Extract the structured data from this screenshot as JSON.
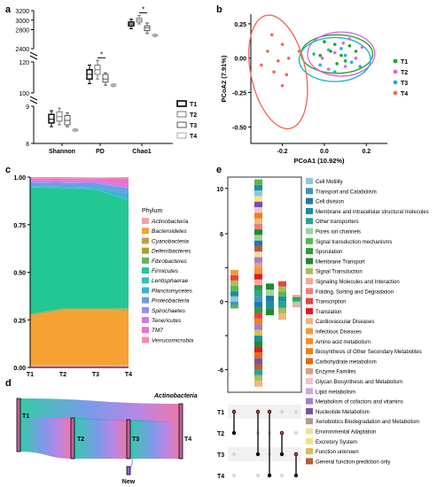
{
  "panels": {
    "a": {
      "label": "a"
    },
    "b": {
      "label": "b"
    },
    "c": {
      "label": "c"
    },
    "d": {
      "label": "d"
    },
    "e": {
      "label": "e"
    }
  },
  "groups": [
    "T1",
    "T2",
    "T3",
    "T4"
  ],
  "colors": {
    "T1": "#2aa02b",
    "T2": "#e066e0",
    "T3": "#18b8c8",
    "T4": "#f26a5e"
  },
  "chart_data": [
    {
      "type": "box",
      "panel": "a",
      "categories": [
        "Shannon",
        "PD",
        "Chao1"
      ],
      "legend": [
        "T1",
        "T2",
        "T3",
        "T4"
      ],
      "y_segments": [
        {
          "range": [
            8,
            9
          ],
          "ticks": [
            8,
            9
          ]
        },
        {
          "range": [
            100,
            120
          ],
          "ticks": [
            100,
            120
          ]
        },
        {
          "range": [
            2400,
            3200
          ],
          "ticks": [
            2400,
            2800,
            3000,
            3200
          ]
        }
      ],
      "boxes": {
        "Shannon": [
          {
            "group": "T1",
            "min": 8.45,
            "q1": 8.55,
            "median": 8.65,
            "q3": 8.78,
            "max": 8.88
          },
          {
            "group": "T2",
            "min": 8.5,
            "q1": 8.6,
            "median": 8.72,
            "q3": 8.85,
            "max": 8.95
          },
          {
            "group": "T3",
            "min": 8.45,
            "q1": 8.5,
            "median": 8.62,
            "q3": 8.75,
            "max": 8.82
          },
          {
            "group": "T4",
            "min": 8.32,
            "q1": 8.34,
            "median": 8.36,
            "q3": 8.38,
            "max": 8.4
          }
        ],
        "PD": [
          {
            "group": "T1",
            "min": 106,
            "q1": 109,
            "median": 112,
            "q3": 115,
            "max": 118
          },
          {
            "group": "T2",
            "min": 109,
            "q1": 112,
            "median": 115,
            "q3": 118,
            "max": 121
          },
          {
            "group": "T3",
            "min": 105,
            "q1": 107,
            "median": 109,
            "q3": 112,
            "max": 113
          },
          {
            "group": "T4",
            "min": 104,
            "q1": 104.5,
            "median": 105,
            "q3": 105.5,
            "max": 106
          }
        ],
        "Chao1": [
          {
            "group": "T1",
            "min": 2820,
            "q1": 2880,
            "median": 2920,
            "q3": 2960,
            "max": 3020
          },
          {
            "group": "T2",
            "min": 2920,
            "q1": 2960,
            "median": 3000,
            "q3": 3040,
            "max": 3100
          },
          {
            "group": "T3",
            "min": 2720,
            "q1": 2780,
            "median": 2840,
            "q3": 2880,
            "max": 2940
          },
          {
            "group": "T4",
            "min": 2650,
            "q1": 2665,
            "median": 2680,
            "q3": 2695,
            "max": 2710
          }
        ]
      },
      "significance": [
        {
          "category": "PD",
          "between": [
            "T2",
            "T3"
          ],
          "label": "*"
        },
        {
          "category": "Chao1",
          "between": [
            "T2",
            "T3"
          ],
          "label": "*"
        }
      ]
    },
    {
      "type": "scatter",
      "panel": "b",
      "xlabel": "PCoA1 (10.92%)",
      "ylabel": "PCoA2 (7.91%)",
      "xlim": [
        -0.35,
        0.3
      ],
      "ylim": [
        -0.62,
        0.32
      ],
      "xticks": [
        -0.2,
        0.0,
        0.2
      ],
      "yticks": [
        -0.5,
        -0.25,
        0.0,
        0.25
      ],
      "xticklabels": [
        "-0.2",
        "0.0",
        "0.2"
      ],
      "yticklabels": [
        "-0.50",
        "-0.25",
        "0.00",
        "0.25"
      ],
      "legend": [
        "T1",
        "T2",
        "T3",
        "T4"
      ],
      "series": [
        {
          "name": "T1",
          "points": [
            [
              0.0,
              0.12
            ],
            [
              0.05,
              0.1
            ],
            [
              0.08,
              0.02
            ],
            [
              0.1,
              -0.02
            ],
            [
              0.03,
              0.05
            ],
            [
              -0.02,
              0.02
            ],
            [
              0.12,
              0.09
            ],
            [
              0.06,
              -0.04
            ],
            [
              0.15,
              0.05
            ]
          ]
        },
        {
          "name": "T2",
          "points": [
            [
              0.12,
              0.14
            ],
            [
              0.05,
              0.04
            ],
            [
              0.15,
              0.0
            ],
            [
              0.1,
              -0.06
            ],
            [
              -0.01,
              0.0
            ],
            [
              0.18,
              0.08
            ],
            [
              0.02,
              -0.08
            ],
            [
              0.09,
              0.11
            ]
          ]
        },
        {
          "name": "T3",
          "points": [
            [
              -0.02,
              -0.05
            ],
            [
              0.02,
              0.06
            ],
            [
              0.08,
              0.07
            ],
            [
              0.05,
              -0.1
            ],
            [
              -0.05,
              0.03
            ],
            [
              0.13,
              -0.03
            ],
            [
              0.1,
              0.02
            ],
            [
              0.17,
              -0.06
            ]
          ]
        },
        {
          "name": "T4",
          "points": [
            [
              -0.25,
              0.17
            ],
            [
              -0.27,
              0.05
            ],
            [
              -0.2,
              0.1
            ],
            [
              -0.22,
              -0.02
            ],
            [
              -0.17,
              0.0
            ],
            [
              -0.3,
              -0.05
            ],
            [
              -0.24,
              -0.1
            ],
            [
              -0.18,
              -0.12
            ],
            [
              -0.2,
              -0.2
            ],
            [
              -0.12,
              0.05
            ]
          ]
        }
      ],
      "ellipses": [
        {
          "group": "T1",
          "cx": 0.06,
          "cy": 0.03,
          "rx": 0.17,
          "ry": 0.14
        },
        {
          "group": "T2",
          "cx": 0.08,
          "cy": 0.03,
          "rx": 0.16,
          "ry": 0.16
        },
        {
          "group": "T3",
          "cx": 0.05,
          "cy": -0.01,
          "rx": 0.17,
          "ry": 0.16
        },
        {
          "group": "T4",
          "cx": -0.22,
          "cy": -0.1,
          "rx": 0.13,
          "ry": 0.42
        }
      ]
    },
    {
      "type": "area",
      "panel": "c",
      "categories": [
        "T1",
        "T2",
        "T3",
        "T4"
      ],
      "ylim": [
        0,
        1
      ],
      "yticks": [
        0.0,
        0.25,
        0.5,
        0.75,
        1.0
      ],
      "yticklabels": [
        "0.00",
        "0.25",
        "0.50",
        "0.75",
        "1.00"
      ],
      "legend_title": "Phylum",
      "series": [
        {
          "name": "Actinobacteria",
          "color": "#f4a0a8",
          "values": [
            0.012,
            0.012,
            0.012,
            0.015
          ]
        },
        {
          "name": "Bacteroidetes",
          "color": "#f5a233",
          "values": [
            0.26,
            0.29,
            0.29,
            0.285
          ]
        },
        {
          "name": "Cyanobacteria",
          "color": "#b7a545",
          "values": [
            0.003,
            0.003,
            0.003,
            0.005
          ]
        },
        {
          "name": "Deferribacteres",
          "color": "#a4a42c",
          "values": [
            0.003,
            0.003,
            0.003,
            0.003
          ]
        },
        {
          "name": "Fibrobacteres",
          "color": "#5cb85c",
          "values": [
            0.003,
            0.003,
            0.003,
            0.003
          ]
        },
        {
          "name": "Firmicutes",
          "color": "#22c792",
          "values": [
            0.665,
            0.63,
            0.623,
            0.565
          ]
        },
        {
          "name": "Lentisphaerae",
          "color": "#2ac4c0",
          "values": [
            0.003,
            0.003,
            0.003,
            0.004
          ]
        },
        {
          "name": "Planctomycetes",
          "color": "#38b4d8",
          "values": [
            0.003,
            0.005,
            0.01,
            0.03
          ]
        },
        {
          "name": "Proteobacteria",
          "color": "#6a9ee4",
          "values": [
            0.02,
            0.02,
            0.02,
            0.03
          ]
        },
        {
          "name": "Spirochaetes",
          "color": "#9a8ef0",
          "values": [
            0.005,
            0.005,
            0.005,
            0.005
          ]
        },
        {
          "name": "Tenericutes",
          "color": "#d478e8",
          "values": [
            0.005,
            0.008,
            0.01,
            0.015
          ]
        },
        {
          "name": "TM7",
          "color": "#f070c8",
          "values": [
            0.01,
            0.01,
            0.01,
            0.03
          ]
        },
        {
          "name": "Verrucomicrobia",
          "color": "#f48cb4",
          "values": [
            0.008,
            0.008,
            0.006,
            0.01
          ]
        }
      ]
    },
    {
      "type": "sankey",
      "panel": "d",
      "nodes": [
        "T1",
        "T2",
        "T3",
        "T4",
        "New",
        "Actinobacteria"
      ],
      "flows": [
        {
          "from": "T1",
          "to": "T4",
          "value": 0.35
        },
        {
          "from": "T1",
          "to": "T2",
          "value": 0.65
        },
        {
          "from": "T2",
          "to": "T3",
          "value": 0.62
        },
        {
          "from": "T3",
          "to": "T4",
          "value": 0.62
        },
        {
          "from": "New",
          "to": "T3",
          "value": 0.05
        }
      ]
    },
    {
      "type": "bar",
      "panel": "e",
      "subtype": "upset-stacked",
      "ylim": [
        -8,
        11
      ],
      "yticks": [
        -6,
        -3,
        0,
        3,
        6,
        10
      ],
      "yticklabels": [
        "-6",
        "",
        "0",
        "",
        "6",
        "10"
      ],
      "set_rows": [
        "T1",
        "T2",
        "T3",
        "T4"
      ],
      "intersections": [
        {
          "sets": [
            "T1",
            "T2"
          ],
          "up": 2.8,
          "down": -0.6
        },
        {
          "sets": [
            "T1",
            "T3"
          ],
          "up": 10.8,
          "down": -7.5
        },
        {
          "sets": [
            "T1",
            "T4"
          ],
          "up": 1.6,
          "down": -1.2
        },
        {
          "sets": [
            "T2",
            "T3"
          ],
          "up": 1.8,
          "down": -1.6
        },
        {
          "sets": [
            "T3",
            "T4"
          ],
          "up": 0.6,
          "down": -0.5
        }
      ],
      "legend": [
        {
          "name": "Cell Motility",
          "color": "#8fc6e0"
        },
        {
          "name": "Transport and Catabolism",
          "color": "#3f94c4"
        },
        {
          "name": "Cell division",
          "color": "#1f78b4"
        },
        {
          "name": "Membrane and intracellular structural molecules",
          "color": "#1c8ea0"
        },
        {
          "name": "Other transporters",
          "color": "#27a58a"
        },
        {
          "name": "Pores ion channels",
          "color": "#9fd49a"
        },
        {
          "name": "Signal transduction mechanisms",
          "color": "#56b84e"
        },
        {
          "name": "Sporulation",
          "color": "#2c9e3a"
        },
        {
          "name": "Membrane Transport",
          "color": "#1e8b2e"
        },
        {
          "name": "Signal Transduction",
          "color": "#a6bf5a"
        },
        {
          "name": "Signaling Molecules and Interaction",
          "color": "#f4a7a0"
        },
        {
          "name": "Folding, Sorting and Degradation",
          "color": "#f07c76"
        },
        {
          "name": "Transcription",
          "color": "#e8433a"
        },
        {
          "name": "Translation",
          "color": "#e41a1c"
        },
        {
          "name": "Cardiovascular Diseases",
          "color": "#f3b57a"
        },
        {
          "name": "Infectious Diseases",
          "color": "#f59a3c"
        },
        {
          "name": "Amino acid metabolism",
          "color": "#fd8d2c"
        },
        {
          "name": "Biosynthesis of Other Secondary Metabolites",
          "color": "#f57e12"
        },
        {
          "name": "Carbohydrate metabolism",
          "color": "#e66b0d"
        },
        {
          "name": "Enzyme Families",
          "color": "#e2a07a"
        },
        {
          "name": "Glycan Biosynthesis and Metabolism",
          "color": "#f2bfd0"
        },
        {
          "name": "Lipid metabolism",
          "color": "#d3a8dc"
        },
        {
          "name": "Metabolism of cofactors and vitamins",
          "color": "#a77bca"
        },
        {
          "name": "Nucleotide Metabolism",
          "color": "#7a4fa8"
        },
        {
          "name": "Xenobiotics Biodegradation and Metabolism",
          "color": "#b69b8a"
        },
        {
          "name": "Environmental Adaptation",
          "color": "#e8e2a0"
        },
        {
          "name": "Excretory System",
          "color": "#f7e27e"
        },
        {
          "name": "Function unknown",
          "color": "#d8c05a"
        },
        {
          "name": "General function prediction only",
          "color": "#b85c3a"
        }
      ]
    }
  ]
}
